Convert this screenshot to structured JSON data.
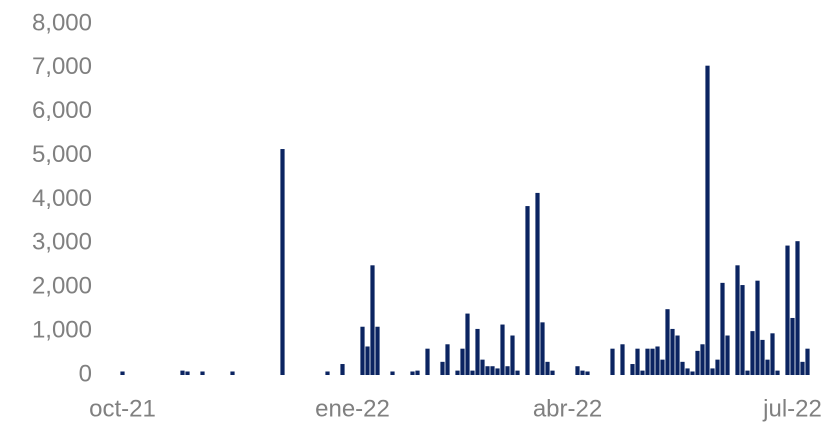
{
  "chart_data": {
    "type": "bar",
    "categories": [
      null,
      null,
      null,
      null,
      "oct-21",
      null,
      null,
      null,
      null,
      null,
      null,
      null,
      null,
      null,
      null,
      null,
      null,
      null,
      null,
      null,
      null,
      null,
      null,
      null,
      null,
      null,
      null,
      null,
      null,
      null,
      null,
      null,
      null,
      null,
      null,
      null,
      null,
      null,
      null,
      null,
      null,
      null,
      null,
      null,
      null,
      null,
      null,
      null,
      null,
      null,
      "ene-22",
      null,
      null,
      null,
      null,
      null,
      null,
      null,
      null,
      null,
      null,
      null,
      null,
      null,
      null,
      null,
      null,
      null,
      null,
      null,
      null,
      null,
      null,
      null,
      null,
      null,
      null,
      null,
      null,
      null,
      null,
      null,
      null,
      null,
      null,
      null,
      null,
      null,
      null,
      null,
      null,
      null,
      null,
      "abr-22",
      null,
      null,
      null,
      null,
      null,
      null,
      null,
      null,
      null,
      null,
      null,
      null,
      null,
      null,
      null,
      null,
      null,
      null,
      null,
      null,
      null,
      null,
      null,
      null,
      null,
      null,
      null,
      null,
      null,
      null,
      null,
      null,
      null,
      null,
      null,
      null,
      null,
      null,
      null,
      null,
      null,
      null,
      null,
      null,
      "jul-22",
      null,
      null,
      null
    ],
    "values": [
      0,
      0,
      0,
      0,
      80,
      0,
      0,
      0,
      0,
      0,
      0,
      0,
      0,
      0,
      0,
      0,
      100,
      80,
      0,
      0,
      80,
      0,
      0,
      0,
      0,
      0,
      80,
      0,
      0,
      0,
      0,
      0,
      0,
      0,
      0,
      0,
      5150,
      0,
      0,
      0,
      0,
      0,
      0,
      0,
      0,
      80,
      0,
      0,
      250,
      0,
      0,
      0,
      1100,
      650,
      2500,
      1100,
      0,
      0,
      80,
      0,
      0,
      0,
      80,
      100,
      0,
      600,
      0,
      0,
      300,
      700,
      0,
      100,
      600,
      1400,
      100,
      1050,
      350,
      200,
      200,
      150,
      1150,
      200,
      900,
      100,
      0,
      3850,
      0,
      4150,
      1200,
      300,
      100,
      0,
      0,
      0,
      0,
      200,
      100,
      80,
      0,
      0,
      0,
      0,
      600,
      0,
      700,
      0,
      250,
      600,
      100,
      600,
      600,
      650,
      350,
      1500,
      1050,
      900,
      300,
      150,
      80,
      550,
      700,
      7050,
      150,
      350,
      2100,
      900,
      0,
      2500,
      2050,
      100,
      1000,
      2150,
      800,
      350,
      950,
      100,
      0,
      2950,
      1300,
      3050,
      300,
      600
    ],
    "color": "#0b2461",
    "ylim": [
      0,
      8000
    ],
    "yticks": [
      0,
      {
        "value": 1000,
        "label": "1,000"
      },
      {
        "value": 2000,
        "label": "2,000"
      },
      {
        "value": 3000,
        "label": "3,000"
      },
      {
        "value": 4000,
        "label": "4,000"
      },
      {
        "value": 5000,
        "label": "5,000"
      },
      {
        "value": 6000,
        "label": "6,000"
      },
      {
        "value": 7000,
        "label": "7,000"
      },
      {
        "value": 8000,
        "label": "8,000"
      }
    ],
    "grid": false
  }
}
